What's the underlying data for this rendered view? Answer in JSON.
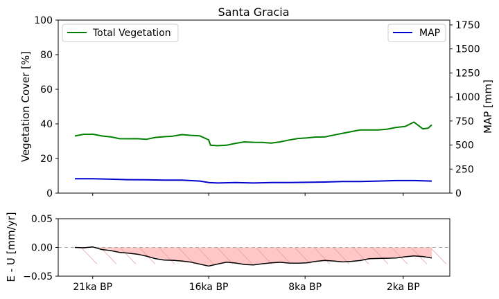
{
  "chart_data": [
    {
      "type": "line",
      "title": "Santa Gracia",
      "ylabel": "Vegetation Cover [%]",
      "ylabel_right": "MAP [mm]",
      "ylim": [
        0,
        100
      ],
      "ylim_right": [
        0,
        1800
      ],
      "yticks": [
        "0",
        "20",
        "40",
        "60",
        "80",
        "100"
      ],
      "yticks_right": [
        "0",
        "250",
        "500",
        "750",
        "1000",
        "1250",
        "1500",
        "1750"
      ],
      "xlim": [
        0,
        1000
      ],
      "grid": false,
      "legend_left": "top-left",
      "legend_right": "top-right",
      "series": [
        {
          "name": "Total Vegetation",
          "axis": "left",
          "color": "#008000",
          "x": [
            0,
            25,
            50,
            75,
            100,
            125,
            150,
            175,
            200,
            225,
            250,
            275,
            300,
            325,
            350,
            375,
            380,
            400,
            425,
            450,
            475,
            500,
            525,
            550,
            575,
            600,
            625,
            650,
            675,
            700,
            725,
            750,
            775,
            800,
            825,
            850,
            875,
            900,
            925,
            950,
            975,
            990,
            1000
          ],
          "values": [
            33,
            33.5,
            33.5,
            33,
            33,
            32,
            31.5,
            31,
            30.5,
            32,
            33,
            33.5,
            34,
            33,
            32.5,
            30.5,
            28,
            28,
            28,
            28.5,
            29,
            29,
            29.5,
            29.5,
            30,
            30.5,
            31,
            31.5,
            32.5,
            33,
            34,
            34.5,
            35,
            36,
            36.5,
            37,
            37.5,
            38,
            38,
            40.5,
            37,
            38,
            40
          ]
        },
        {
          "name": "MAP",
          "axis": "right",
          "color": "#0000CD",
          "x": [
            0,
            50,
            100,
            150,
            200,
            250,
            300,
            350,
            375,
            400,
            450,
            500,
            550,
            600,
            650,
            700,
            750,
            800,
            850,
            900,
            950,
            1000
          ],
          "values": [
            150,
            150,
            145,
            140,
            138,
            135,
            135,
            125,
            110,
            105,
            110,
            105,
            110,
            110,
            112,
            115,
            120,
            120,
            125,
            130,
            130,
            125
          ]
        }
      ]
    },
    {
      "type": "area",
      "ylabel": "E - U [mm/yr]",
      "ylim": [
        -0.05,
        0.05
      ],
      "yticks": [
        "0.05",
        "0.00",
        "−0.05"
      ],
      "xlim": [
        0,
        1000
      ],
      "xtick_positions": [
        50,
        375,
        645,
        920
      ],
      "xticks": [
        "21ka BP",
        "16ka BP",
        "8ka BP",
        "2ka BP"
      ],
      "reference_line": 0,
      "fill_color": "#FFC8C8",
      "series": [
        {
          "name": "",
          "color": "#000000",
          "x": [
            0,
            25,
            50,
            75,
            100,
            125,
            150,
            175,
            200,
            225,
            250,
            275,
            300,
            325,
            350,
            375,
            400,
            425,
            450,
            475,
            500,
            525,
            550,
            575,
            600,
            625,
            650,
            675,
            700,
            725,
            750,
            775,
            800,
            825,
            850,
            875,
            900,
            925,
            950,
            975,
            1000
          ],
          "values": [
            0,
            -0.002,
            0,
            -0.003,
            -0.004,
            -0.008,
            -0.011,
            -0.013,
            -0.015,
            -0.018,
            -0.021,
            -0.023,
            -0.025,
            -0.026,
            -0.028,
            -0.031,
            -0.029,
            -0.027,
            -0.028,
            -0.029,
            -0.029,
            -0.028,
            -0.028,
            -0.027,
            -0.027,
            -0.026,
            -0.026,
            -0.025,
            -0.024,
            -0.024,
            -0.024,
            -0.023,
            -0.023,
            -0.021,
            -0.02,
            -0.018,
            -0.017,
            -0.016,
            -0.016,
            -0.017,
            -0.018
          ]
        }
      ]
    }
  ]
}
